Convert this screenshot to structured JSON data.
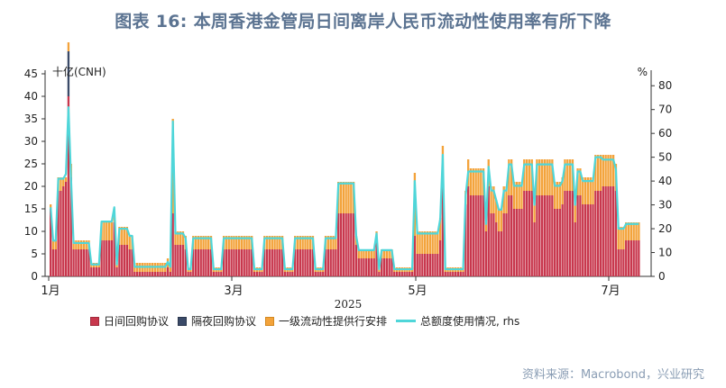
{
  "title": "图表 16: 本周香港金管局日间离岸人民币流动性使用率有所下降",
  "source": "资料来源：Macrobond，兴业研究",
  "chart_data": {
    "type": "bar",
    "stacked": true,
    "title": "图表 16: 本周香港金管局日间离岸人民币流动性使用率有所下降",
    "y_left_label": "十亿(CNH)",
    "y_right_label": "%",
    "y_left_lim": [
      0,
      45
    ],
    "y_left_ticks": [
      "0",
      "5",
      "10",
      "15",
      "20",
      "25",
      "30",
      "35",
      "40",
      "45"
    ],
    "y_right_lim": [
      0,
      85
    ],
    "y_right_ticks": [
      "0",
      "10",
      "20",
      "30",
      "40",
      "50",
      "60",
      "70",
      "80"
    ],
    "x_tick_labels": [
      "1月",
      "3月",
      "5月",
      "7月"
    ],
    "x_year_label": "2025",
    "legend_position": "bottom",
    "grid": false,
    "series": [
      {
        "name": "日间回购协议",
        "kind": "bar",
        "color": "#c8374d",
        "values": [
          15,
          6,
          6,
          19,
          19,
          20,
          21,
          40,
          22,
          6,
          6,
          6,
          6,
          6,
          6,
          6,
          2,
          2,
          2,
          2,
          8,
          8,
          8,
          8,
          8,
          12,
          2,
          7,
          7,
          7,
          7,
          6,
          6,
          1,
          1,
          1,
          1,
          1,
          1,
          1,
          1,
          1,
          1,
          1,
          1,
          1,
          2,
          1,
          14,
          7,
          7,
          7,
          7,
          6,
          1,
          1,
          6,
          6,
          6,
          6,
          6,
          6,
          6,
          6,
          1,
          1,
          1,
          1,
          6,
          6,
          6,
          6,
          6,
          6,
          6,
          6,
          6,
          6,
          6,
          6,
          1,
          1,
          1,
          1,
          6,
          6,
          6,
          6,
          6,
          6,
          6,
          6,
          1,
          1,
          1,
          1,
          6,
          6,
          6,
          6,
          6,
          6,
          6,
          6,
          1,
          1,
          1,
          1,
          6,
          6,
          6,
          6,
          6,
          14,
          14,
          14,
          14,
          14,
          14,
          14,
          7,
          4,
          4,
          4,
          4,
          4,
          4,
          4,
          8,
          1,
          4,
          4,
          4,
          4,
          4,
          1,
          1,
          1,
          1,
          1,
          1,
          1,
          1,
          9,
          5,
          5,
          5,
          5,
          5,
          5,
          5,
          5,
          5,
          8,
          22,
          1,
          1,
          1,
          1,
          1,
          1,
          1,
          1,
          16,
          20,
          18,
          18,
          18,
          18,
          18,
          18,
          10,
          20,
          14,
          14,
          12,
          10,
          10,
          14,
          14,
          18,
          18,
          15,
          15,
          15,
          15,
          19,
          19,
          19,
          19,
          12,
          18,
          18,
          18,
          18,
          18,
          18,
          18,
          15,
          15,
          15,
          16,
          19,
          19,
          19,
          19,
          12,
          18,
          18,
          16,
          16,
          16,
          16,
          16,
          19,
          19,
          19,
          20,
          20,
          20,
          20,
          20,
          19,
          6,
          6,
          6,
          8,
          8,
          8,
          8,
          8,
          8
        ]
      },
      {
        "name": "隔夜回购协议",
        "kind": "bar",
        "color": "#3a4a68",
        "values": [
          0,
          0,
          0,
          0,
          0,
          0,
          0,
          10,
          0,
          0,
          0,
          0,
          0,
          0,
          0,
          0,
          0,
          0,
          0,
          0,
          0,
          0,
          0,
          0,
          0,
          0,
          0,
          0,
          0,
          0,
          0,
          0,
          0,
          0,
          0,
          0,
          0,
          0,
          0,
          0,
          0,
          0,
          0,
          0,
          0,
          0,
          0,
          0,
          0,
          0,
          0,
          0,
          0,
          0,
          0,
          0,
          0,
          0,
          0,
          0,
          0,
          0,
          0,
          0,
          0,
          0,
          0,
          0,
          0,
          0,
          0,
          0,
          0,
          0,
          0,
          0,
          0,
          0,
          0,
          0,
          0,
          0,
          0,
          0,
          0,
          0,
          0,
          0,
          0,
          0,
          0,
          0,
          0,
          0,
          0,
          0,
          0,
          0,
          0,
          0,
          0,
          0,
          0,
          0,
          0,
          0,
          0,
          0,
          0,
          0,
          0,
          0,
          0,
          0,
          0,
          0,
          0,
          0,
          0,
          0,
          0,
          0,
          0,
          0,
          0,
          0,
          0,
          0,
          0,
          0,
          0,
          0,
          0,
          0,
          0,
          0,
          0,
          0,
          0,
          0,
          0,
          0,
          0,
          0,
          0,
          0,
          0,
          0,
          0,
          0,
          0,
          0,
          0,
          0,
          0,
          0,
          0,
          0,
          0,
          0,
          0,
          0,
          0,
          0,
          0,
          0,
          0,
          0,
          0,
          0,
          0,
          0,
          0,
          0,
          0,
          0,
          0,
          0,
          0,
          0,
          0,
          0,
          0,
          0,
          0,
          0,
          0,
          0,
          0,
          0,
          0,
          0,
          0,
          0,
          0,
          0,
          0,
          0,
          0,
          0,
          0,
          0,
          0,
          0,
          0,
          0,
          0,
          0,
          0,
          0,
          0,
          0,
          0,
          0,
          0,
          0,
          0,
          0,
          0,
          0,
          0,
          0,
          0,
          0,
          0,
          0,
          0,
          0,
          0,
          0,
          0,
          0,
          0,
          0,
          0,
          0
        ]
      },
      {
        "name": "一级流动性提供行安排",
        "kind": "bar",
        "color": "#f3a33b",
        "values": [
          1,
          2,
          2,
          3,
          3,
          2,
          1,
          2,
          3,
          2,
          2,
          2,
          2,
          2,
          2,
          2,
          1,
          1,
          1,
          1,
          4,
          4,
          4,
          4,
          4,
          3,
          1,
          4,
          4,
          4,
          4,
          3,
          3,
          2,
          2,
          2,
          2,
          2,
          2,
          2,
          2,
          2,
          2,
          2,
          2,
          2,
          2,
          2,
          21,
          3,
          3,
          3,
          3,
          3,
          1,
          1,
          3,
          3,
          3,
          3,
          3,
          3,
          3,
          3,
          1,
          1,
          1,
          1,
          3,
          3,
          3,
          3,
          3,
          3,
          3,
          3,
          3,
          3,
          3,
          3,
          1,
          1,
          1,
          1,
          3,
          3,
          3,
          3,
          3,
          3,
          3,
          3,
          1,
          1,
          1,
          1,
          3,
          3,
          3,
          3,
          3,
          3,
          3,
          3,
          1,
          1,
          1,
          1,
          3,
          3,
          3,
          3,
          3,
          7,
          7,
          7,
          7,
          7,
          7,
          7,
          2,
          2,
          2,
          2,
          2,
          2,
          2,
          2,
          2,
          1,
          2,
          2,
          2,
          2,
          2,
          1,
          1,
          1,
          1,
          1,
          1,
          1,
          1,
          14,
          5,
          5,
          5,
          5,
          5,
          5,
          5,
          5,
          5,
          5,
          7,
          1,
          1,
          1,
          1,
          1,
          1,
          1,
          1,
          3,
          6,
          6,
          6,
          6,
          6,
          6,
          6,
          2,
          6,
          6,
          6,
          5,
          5,
          5,
          6,
          6,
          8,
          8,
          6,
          6,
          6,
          6,
          7,
          7,
          7,
          7,
          5,
          8,
          8,
          8,
          8,
          8,
          8,
          8,
          6,
          6,
          6,
          6,
          7,
          7,
          7,
          7,
          5,
          6,
          6,
          6,
          6,
          6,
          6,
          6,
          8,
          8,
          8,
          7,
          7,
          7,
          7,
          7,
          6,
          5,
          5,
          5,
          4,
          4,
          4,
          4,
          4,
          4
        ]
      },
      {
        "name": "总额度使用情况, rhs",
        "kind": "line",
        "color": "#4fd6d9",
        "axis": "right",
        "values": [
          29,
          15,
          15,
          41,
          41,
          41,
          43,
          71,
          41,
          14,
          14,
          14,
          14,
          14,
          14,
          14,
          5,
          5,
          5,
          5,
          23,
          23,
          23,
          23,
          23,
          29,
          5,
          20,
          20,
          20,
          20,
          17,
          17,
          4,
          4,
          4,
          4,
          4,
          4,
          4,
          4,
          4,
          4,
          4,
          4,
          4,
          6,
          4,
          65,
          18,
          18,
          18,
          18,
          16,
          3,
          3,
          16,
          16,
          16,
          16,
          16,
          16,
          16,
          16,
          3,
          3,
          3,
          3,
          16,
          16,
          16,
          16,
          16,
          16,
          16,
          16,
          16,
          16,
          16,
          16,
          3,
          3,
          3,
          3,
          16,
          16,
          16,
          16,
          16,
          16,
          16,
          16,
          3,
          3,
          3,
          3,
          16,
          16,
          16,
          16,
          16,
          16,
          16,
          16,
          3,
          3,
          3,
          3,
          16,
          16,
          16,
          16,
          16,
          39,
          39,
          39,
          39,
          39,
          39,
          39,
          17,
          11,
          11,
          11,
          11,
          11,
          11,
          11,
          18,
          3,
          11,
          11,
          11,
          11,
          11,
          3,
          3,
          3,
          3,
          3,
          3,
          3,
          3,
          40,
          18,
          18,
          18,
          18,
          18,
          18,
          18,
          18,
          18,
          24,
          51,
          3,
          3,
          3,
          3,
          3,
          3,
          3,
          3,
          34,
          44,
          44,
          44,
          44,
          44,
          44,
          44,
          22,
          46,
          36,
          36,
          32,
          28,
          28,
          36,
          36,
          47,
          47,
          38,
          38,
          38,
          38,
          47,
          47,
          47,
          47,
          30,
          47,
          47,
          47,
          47,
          47,
          47,
          47,
          38,
          38,
          38,
          40,
          47,
          47,
          47,
          47,
          30,
          44,
          44,
          40,
          40,
          40,
          40,
          40,
          50,
          50,
          50,
          49,
          49,
          49,
          49,
          49,
          45,
          20,
          20,
          20,
          22,
          22,
          22,
          22,
          22,
          22
        ]
      }
    ]
  }
}
